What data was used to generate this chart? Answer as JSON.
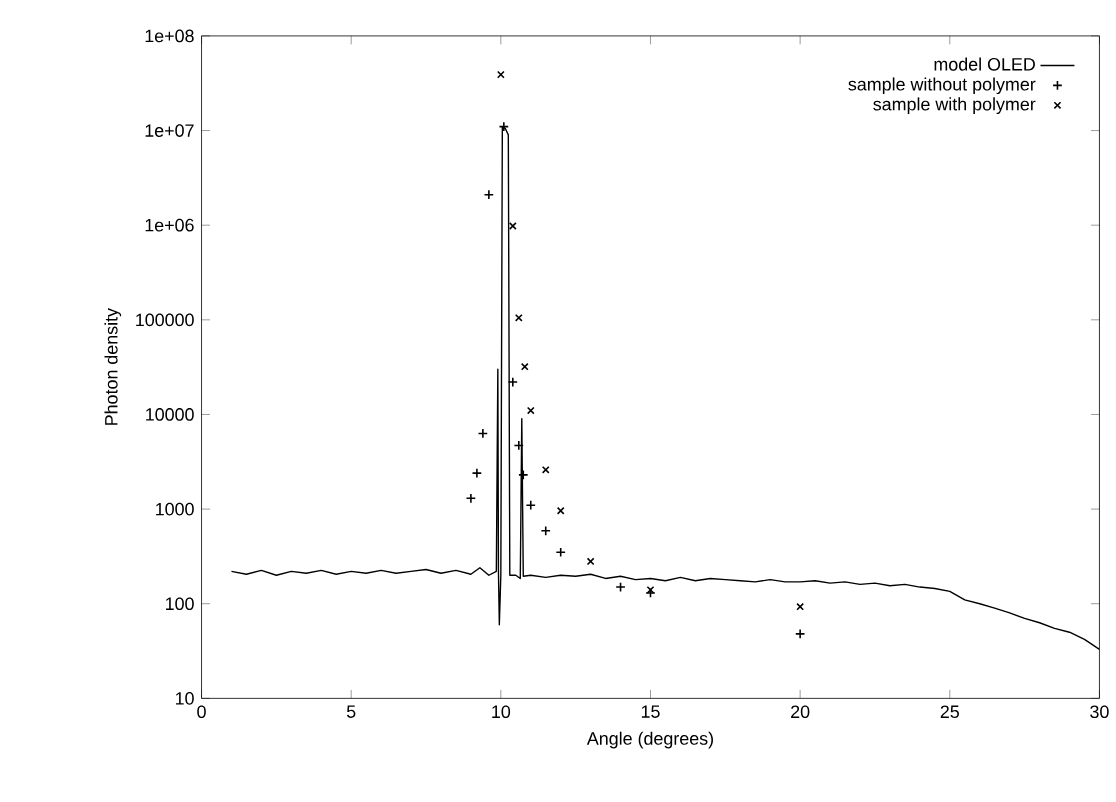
{
  "chart_data": {
    "type": "line",
    "xlabel": "Angle (degrees)",
    "ylabel": "Photon density",
    "log": "y",
    "grid": false,
    "legend": "top right",
    "xlim": [
      0,
      30
    ],
    "xticks": [
      0,
      5,
      10,
      15,
      20,
      25,
      30
    ],
    "ylim": [
      10,
      100000000
    ],
    "yticks": [
      10,
      100,
      1000,
      10000,
      100000,
      {
        "value": 1000000,
        "label": "1e+06"
      },
      {
        "value": 10000000,
        "label": "1e+07"
      },
      {
        "value": 100000000,
        "label": "1e+08"
      }
    ],
    "series": [
      {
        "name": "model OLED",
        "color": "#000000",
        "marker": "none",
        "line_style": "solid",
        "x": [
          1,
          1.5,
          2,
          2.5,
          3,
          3.5,
          4,
          4.5,
          5,
          5.5,
          6,
          6.5,
          7,
          7.5,
          8,
          8.5,
          9,
          9.3,
          9.6,
          9.85,
          9.9,
          9.92,
          9.95,
          10,
          10.05,
          10.15,
          10.25,
          10.3,
          10.5,
          10.65,
          10.7,
          10.75,
          11,
          11.5,
          12,
          12.5,
          13,
          13.5,
          14,
          14.5,
          15,
          15.5,
          16,
          16.5,
          17,
          17.5,
          18,
          18.5,
          19,
          19.5,
          20,
          20.5,
          21,
          21.5,
          22,
          22.5,
          23,
          23.5,
          24,
          24.5,
          25,
          25.5,
          26,
          26.5,
          27,
          27.5,
          28,
          28.5,
          29,
          29.5,
          30
        ],
        "values": [
          220,
          205,
          225,
          200,
          220,
          210,
          225,
          205,
          220,
          210,
          225,
          210,
          220,
          230,
          210,
          225,
          205,
          240,
          200,
          220,
          30000,
          220,
          60,
          200,
          11000000,
          10500000,
          9000000,
          200,
          200,
          185,
          9000,
          195,
          200,
          190,
          200,
          195,
          205,
          185,
          195,
          180,
          185,
          175,
          190,
          175,
          185,
          180,
          175,
          170,
          180,
          170,
          170,
          175,
          165,
          170,
          160,
          165,
          155,
          160,
          150,
          145,
          135,
          110,
          100,
          90,
          80,
          70,
          63,
          55,
          50,
          42,
          33
        ]
      },
      {
        "name": "sample without polymer",
        "type": "scatter",
        "color": "#000000",
        "marker": "plus",
        "x": [
          9.0,
          9.2,
          9.4,
          9.6,
          10.1,
          10.4,
          10.6,
          10.75,
          11,
          11.5,
          12,
          14,
          15,
          20
        ],
        "values": [
          1300,
          2400,
          6300,
          2100000,
          11000000,
          22000,
          4700,
          2300,
          1100,
          590,
          350,
          150,
          130,
          48
        ]
      },
      {
        "name": "sample with polymer",
        "type": "scatter",
        "color": "#000000",
        "marker": "cross",
        "x": [
          10,
          10.4,
          10.6,
          10.8,
          11,
          11.5,
          12,
          13,
          15,
          20
        ],
        "values": [
          39000000,
          980000,
          105000,
          32000,
          11000,
          2600,
          960,
          280,
          140,
          93
        ]
      }
    ]
  }
}
